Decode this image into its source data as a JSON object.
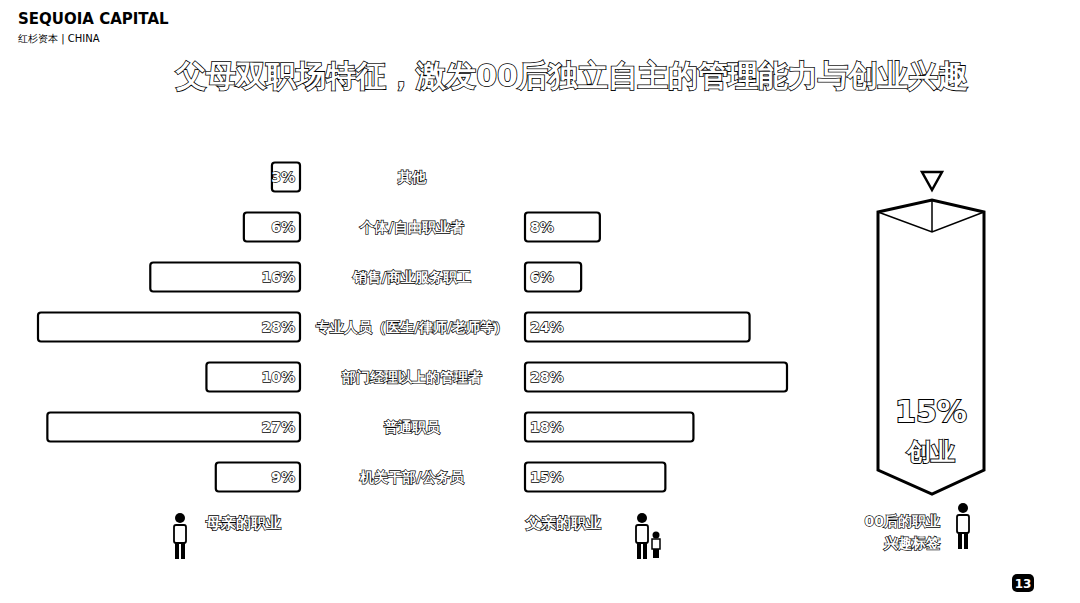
{
  "chart_data": {
    "type": "bar",
    "title": "父母双职场特征，激发00后独立自主的管理能力与创业兴趣",
    "brand": "SEQUOIA CAPITAL",
    "brand_sub": "红杉资本 | CHINA",
    "page_number": 13,
    "orientation": "horizontal",
    "data_labels": true,
    "tick_labels": false,
    "categories": [
      "其他",
      "个体/自由职业者",
      "销售/商业服务职工",
      "专业人员（医生/律师/老师等）",
      "部门经理以上的管理者",
      "普通职员",
      "机关干部/公务员"
    ],
    "series": [
      {
        "name": "母亲的职业",
        "color": "#ffffff",
        "values": [
          3,
          6,
          16,
          28,
          10,
          27,
          9
        ],
        "value_labels": [
          "3%",
          "6%",
          "16%",
          "28%",
          "10%",
          "27%",
          "9%"
        ]
      },
      {
        "name": "父亲的职业",
        "color": "#ffffff",
        "values": [
          null,
          8,
          6,
          24,
          28,
          18,
          15
        ],
        "value_labels": [
          null,
          "8%",
          "6%",
          "24%",
          "28%",
          "18%",
          "15%"
        ]
      }
    ],
    "highlight": {
      "value": 15,
      "value_label": "15%",
      "text": "创业",
      "label_lines": [
        "00后的职业",
        "兴趣标签"
      ]
    }
  }
}
